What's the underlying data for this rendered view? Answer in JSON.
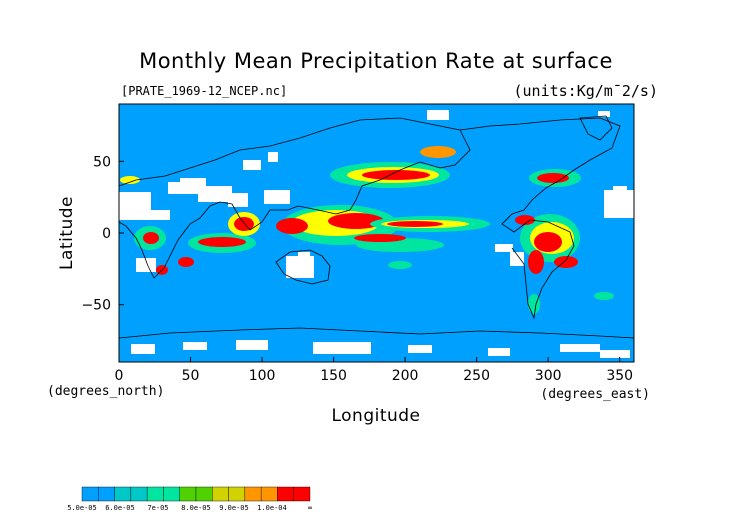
{
  "title": "Monthly Mean Precipitation Rate at surface",
  "file_label": "[PRATE_1969-12_NCEP.nc]",
  "units": "(units:Kg/m¯2/s)",
  "map": {
    "xlabel": "Longitude",
    "ylabel": "Latitude",
    "x_unit": "(degrees_east)",
    "y_unit": "(degrees_north)",
    "x_ticks": [
      "0",
      "50",
      "100",
      "150",
      "200",
      "250",
      "300",
      "350"
    ],
    "y_ticks": [
      "50",
      "0",
      "−50"
    ],
    "xlim": [
      0,
      360
    ],
    "ylim": [
      -90,
      90
    ],
    "ocean_color": "#00a0ff",
    "missing_color": "#ffffff"
  },
  "colorbar": {
    "labels": [
      "5.0e-05",
      "6.0e-05",
      "7e-05",
      "8.0e-05",
      "9.0e-05",
      "1.0e-04",
      "∞"
    ],
    "colors": [
      "#00a0ff",
      "#00c8c8",
      "#00e6a0",
      "#50d200",
      "#d2d200",
      "#ff9600",
      "#ff0000"
    ]
  }
}
